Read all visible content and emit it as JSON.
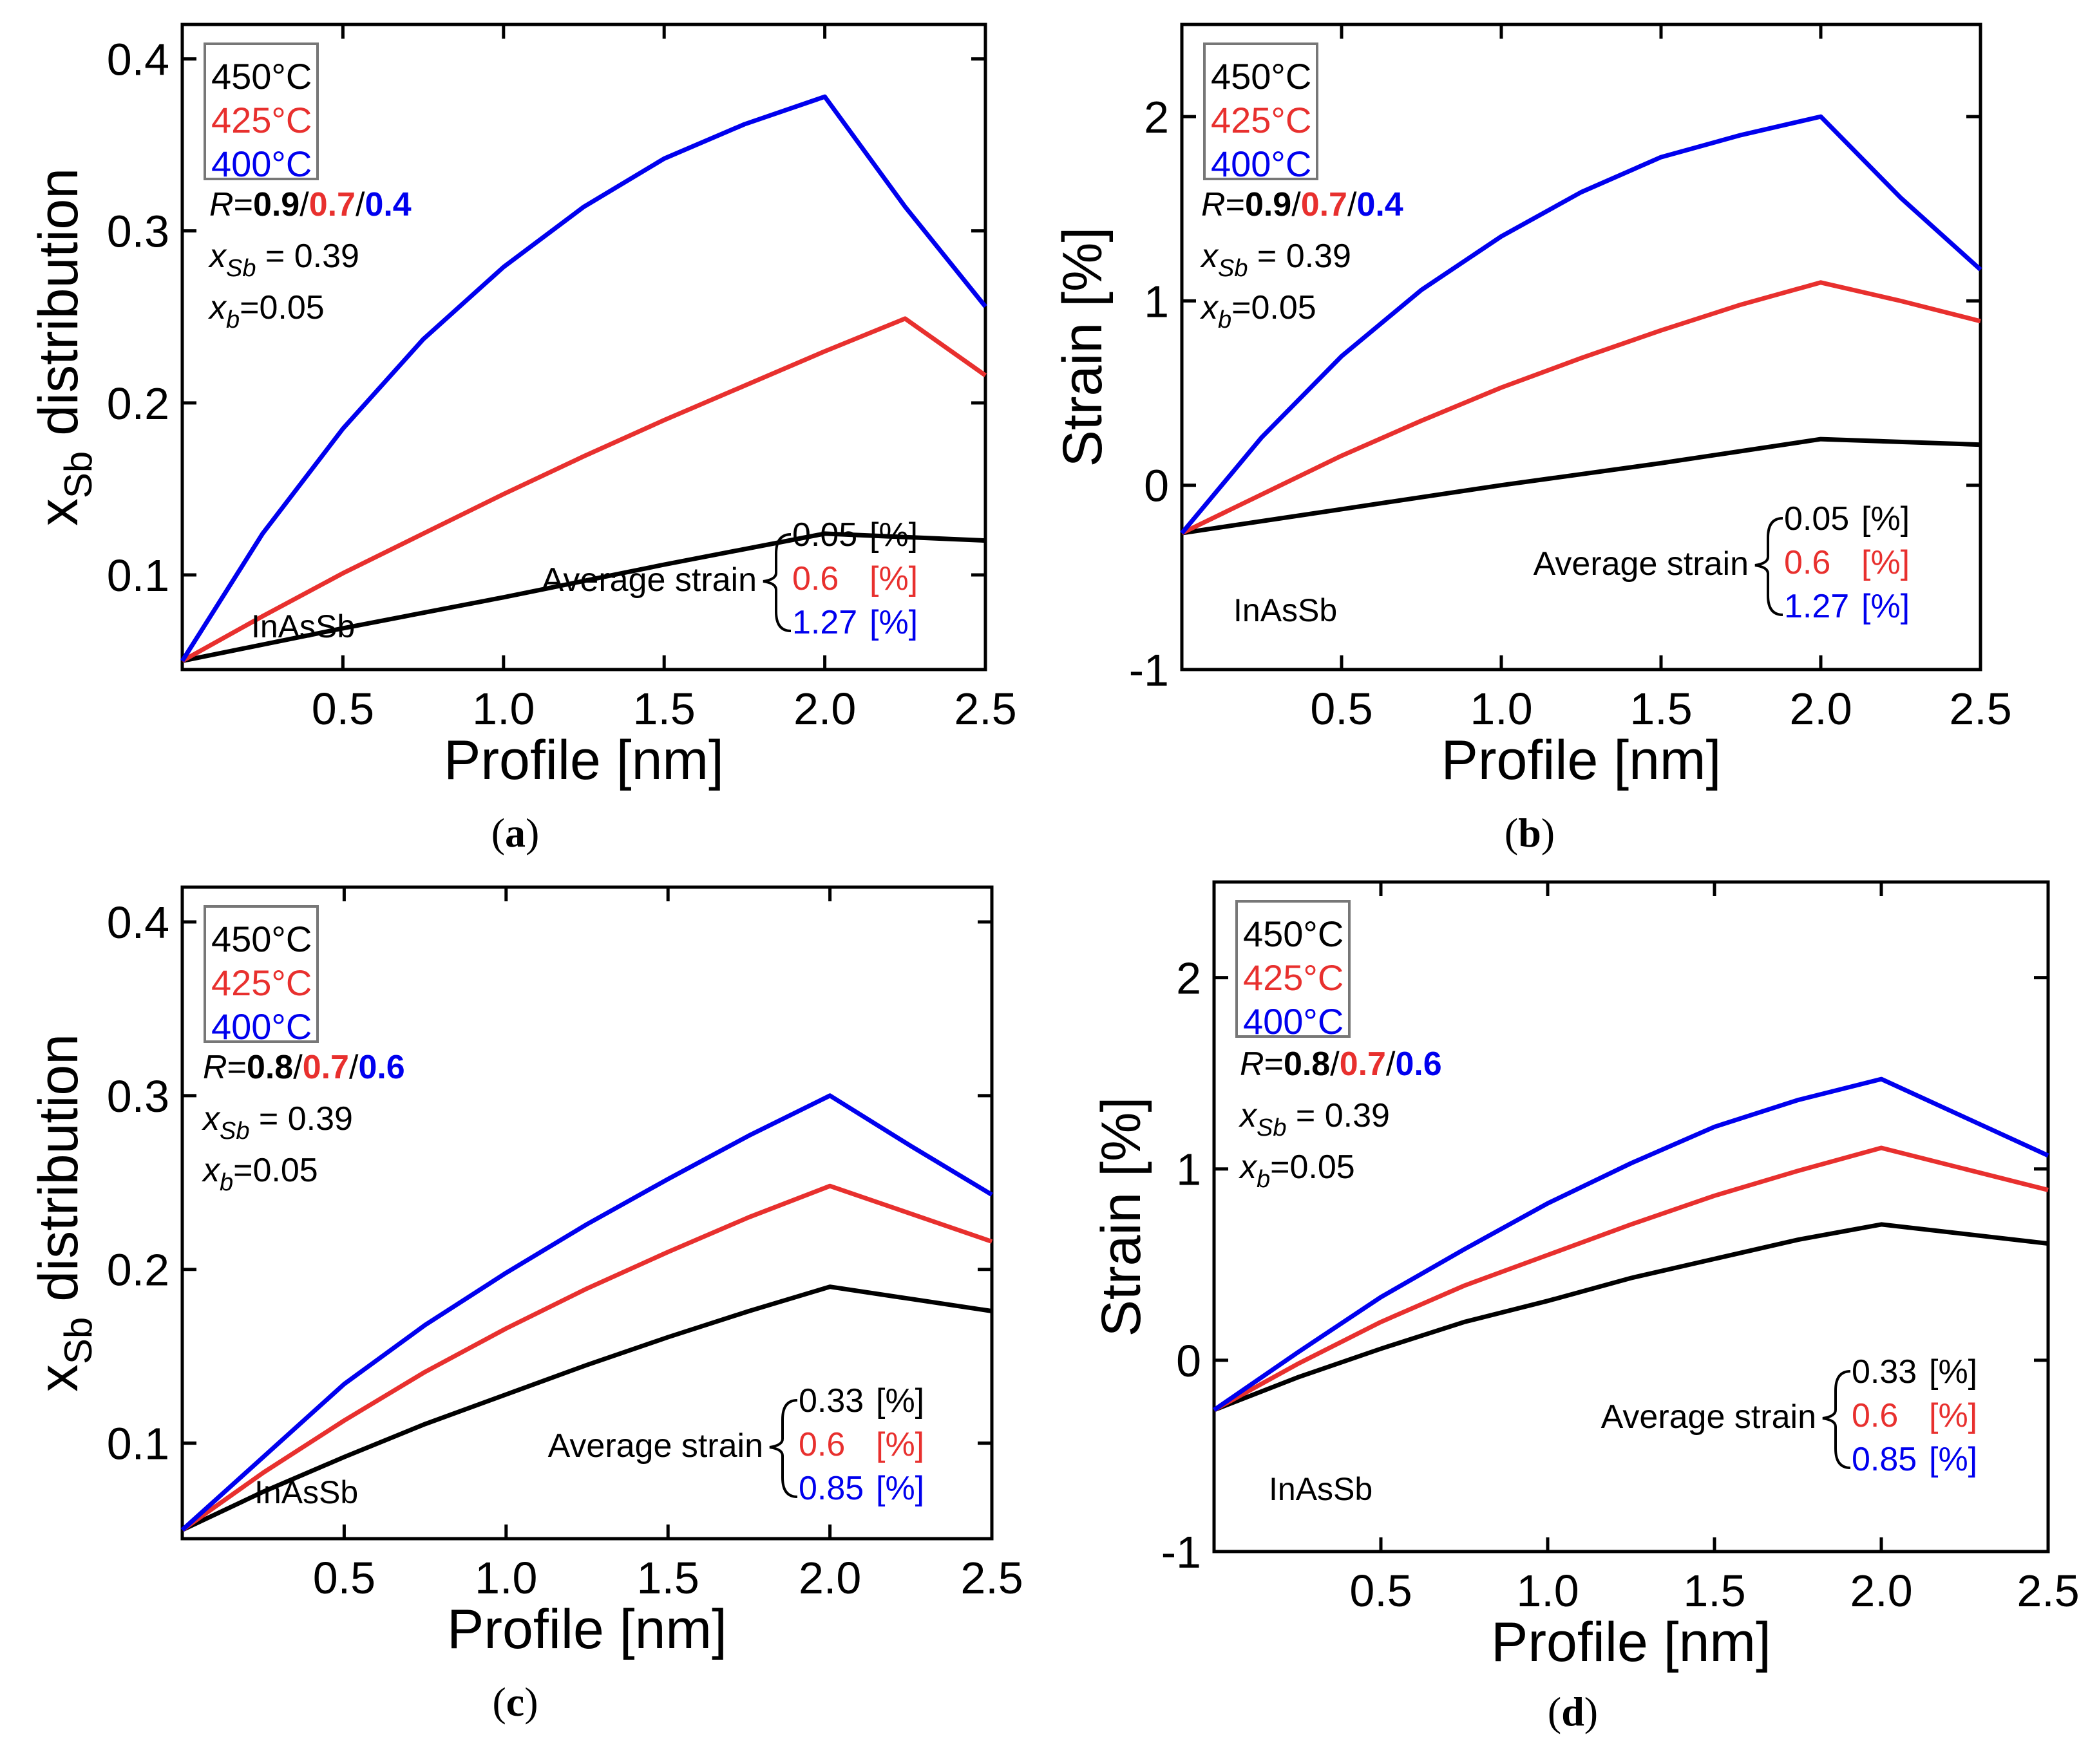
{
  "figure": {
    "colors": {
      "450": "#000000",
      "425": "#e8302e",
      "400": "#0000ee",
      "axis": "#000000"
    },
    "panels": [
      {
        "id": "a",
        "caption_letter": "a",
        "legend": [
          "450°C",
          "425°C",
          "400°C"
        ],
        "r_prefix": "R",
        "r_values": [
          "0.9",
          "0.7",
          "0.4"
        ],
        "xsb_label": "x",
        "xsb_sub": "Sb",
        "xsb_value": " = 0.39",
        "xb_label": "x",
        "xb_sub": "b",
        "xb_value": "=0.05",
        "material": "InAsSb",
        "avg_label": "Average strain",
        "avg_values": [
          "0.05",
          "0.6",
          "1.27"
        ],
        "avg_unit": "[%]"
      },
      {
        "id": "b",
        "caption_letter": "b",
        "legend": [
          "450°C",
          "425°C",
          "400°C"
        ],
        "r_prefix": "R",
        "r_values": [
          "0.9",
          "0.7",
          "0.4"
        ],
        "xsb_label": "x",
        "xsb_sub": "Sb",
        "xsb_value": " = 0.39",
        "xb_label": "x",
        "xb_sub": "b",
        "xb_value": "=0.05",
        "material": "InAsSb",
        "avg_label": "Average strain",
        "avg_values": [
          "0.05",
          "0.6",
          "1.27"
        ],
        "avg_unit": "[%]"
      },
      {
        "id": "c",
        "caption_letter": "c",
        "legend": [
          "450°C",
          "425°C",
          "400°C"
        ],
        "r_prefix": "R",
        "r_values": [
          "0.8",
          "0.7",
          "0.6"
        ],
        "xsb_label": "x",
        "xsb_sub": "Sb",
        "xsb_value": " = 0.39",
        "xb_label": "x",
        "xb_sub": "b",
        "xb_value": "=0.05",
        "material": "InAsSb",
        "avg_label": "Average strain",
        "avg_values": [
          "0.33",
          "0.6",
          "0.85"
        ],
        "avg_unit": "[%]"
      },
      {
        "id": "d",
        "caption_letter": "d",
        "legend": [
          "450°C",
          "425°C",
          "400°C"
        ],
        "r_prefix": "R",
        "r_values": [
          "0.8",
          "0.7",
          "0.6"
        ],
        "xsb_label": "x",
        "xsb_sub": "Sb",
        "xsb_value": " = 0.39",
        "xb_label": "x",
        "xb_sub": "b",
        "xb_value": "=0.05",
        "material": "InAsSb",
        "avg_label": "Average strain",
        "avg_values": [
          "0.33",
          "0.6",
          "0.85"
        ],
        "avg_unit": "[%]"
      }
    ]
  },
  "chart_data": [
    {
      "panel": "a",
      "type": "line",
      "title": "",
      "xlabel": "Profile [nm]",
      "ylabel_main": "x",
      "ylabel_sub": "Sb",
      "ylabel_rest": " distribution",
      "xlim": [
        0,
        2.5
      ],
      "ylim": [
        0.045,
        0.42
      ],
      "xticks": [
        0.5,
        1.0,
        1.5,
        2.0,
        2.5
      ],
      "xtick_labels": [
        "0.5",
        "1.0",
        "1.5",
        "2.0",
        "2.5"
      ],
      "yticks": [
        0.1,
        0.2,
        0.3,
        0.4
      ],
      "ytick_labels": [
        "0.1",
        "0.2",
        "0.3",
        "0.4"
      ],
      "series": [
        {
          "name": "450°C",
          "color": "#000000",
          "x": [
            0,
            0.5,
            1.0,
            1.5,
            2.0,
            2.5
          ],
          "y": [
            0.05,
            0.069,
            0.087,
            0.106,
            0.124,
            0.12
          ]
        },
        {
          "name": "425°C",
          "color": "#e8302e",
          "x": [
            0,
            0.25,
            0.5,
            0.75,
            1.0,
            1.25,
            1.5,
            1.75,
            2.0,
            2.25,
            2.5
          ],
          "y": [
            0.05,
            0.076,
            0.101,
            0.124,
            0.147,
            0.169,
            0.19,
            0.21,
            0.23,
            0.249,
            0.216
          ]
        },
        {
          "name": "400°C",
          "color": "#0000ee",
          "x": [
            0,
            0.25,
            0.5,
            0.75,
            1.0,
            1.25,
            1.5,
            1.75,
            2.0,
            2.25,
            2.5
          ],
          "y": [
            0.05,
            0.124,
            0.185,
            0.237,
            0.279,
            0.314,
            0.342,
            0.362,
            0.378,
            0.314,
            0.256
          ]
        }
      ]
    },
    {
      "panel": "b",
      "type": "line",
      "title": "",
      "xlabel": "Profile [nm]",
      "ylabel": "Strain [%]",
      "xlim": [
        0,
        2.5
      ],
      "ylim": [
        -1,
        2.5
      ],
      "xticks": [
        0.5,
        1.0,
        1.5,
        2.0,
        2.5
      ],
      "xtick_labels": [
        "0.5",
        "1.0",
        "1.5",
        "2.0",
        "2.5"
      ],
      "yticks": [
        -1,
        0,
        1,
        2
      ],
      "ytick_labels": [
        "-1",
        "0",
        "1",
        "2"
      ],
      "series": [
        {
          "name": "450°C",
          "color": "#000000",
          "x": [
            0,
            0.5,
            1.0,
            1.5,
            2.0,
            2.5
          ],
          "y": [
            -0.26,
            -0.13,
            0.0,
            0.12,
            0.25,
            0.22
          ]
        },
        {
          "name": "425°C",
          "color": "#e8302e",
          "x": [
            0,
            0.25,
            0.5,
            0.75,
            1.0,
            1.25,
            1.5,
            1.75,
            2.0,
            2.25,
            2.5
          ],
          "y": [
            -0.26,
            -0.05,
            0.16,
            0.35,
            0.53,
            0.69,
            0.84,
            0.98,
            1.1,
            1.0,
            0.89
          ]
        },
        {
          "name": "400°C",
          "color": "#0000ee",
          "x": [
            0,
            0.25,
            0.5,
            0.75,
            1.0,
            1.25,
            1.5,
            1.75,
            2.0,
            2.25,
            2.5
          ],
          "y": [
            -0.26,
            0.26,
            0.7,
            1.06,
            1.35,
            1.59,
            1.78,
            1.9,
            2.0,
            1.56,
            1.17
          ]
        }
      ]
    },
    {
      "panel": "c",
      "type": "line",
      "title": "",
      "xlabel": "Profile [nm]",
      "ylabel_main": "x",
      "ylabel_sub": "Sb",
      "ylabel_rest": " distribution",
      "xlim": [
        0,
        2.5
      ],
      "ylim": [
        0.045,
        0.42
      ],
      "xticks": [
        0.5,
        1.0,
        1.5,
        2.0,
        2.5
      ],
      "xtick_labels": [
        "0.5",
        "1.0",
        "1.5",
        "2.0",
        "2.5"
      ],
      "yticks": [
        0.1,
        0.2,
        0.3,
        0.4
      ],
      "ytick_labels": [
        "0.1",
        "0.2",
        "0.3",
        "0.4"
      ],
      "series": [
        {
          "name": "450°C",
          "color": "#000000",
          "x": [
            0,
            0.25,
            0.5,
            0.75,
            1.0,
            1.25,
            1.5,
            1.75,
            2.0,
            2.25,
            2.5
          ],
          "y": [
            0.05,
            0.072,
            0.092,
            0.111,
            0.128,
            0.145,
            0.161,
            0.176,
            0.19,
            0.183,
            0.176
          ]
        },
        {
          "name": "425°C",
          "color": "#e8302e",
          "x": [
            0,
            0.25,
            0.5,
            0.75,
            1.0,
            1.25,
            1.5,
            1.75,
            2.0,
            2.25,
            2.5
          ],
          "y": [
            0.05,
            0.083,
            0.113,
            0.141,
            0.166,
            0.189,
            0.21,
            0.23,
            0.248,
            0.232,
            0.216
          ]
        },
        {
          "name": "400°C",
          "color": "#0000ee",
          "x": [
            0,
            0.25,
            0.5,
            0.75,
            1.0,
            1.25,
            1.5,
            1.75,
            2.0,
            2.25,
            2.5
          ],
          "y": [
            0.05,
            0.092,
            0.134,
            0.168,
            0.198,
            0.226,
            0.252,
            0.277,
            0.3,
            0.271,
            0.243
          ]
        }
      ]
    },
    {
      "panel": "d",
      "type": "line",
      "title": "",
      "xlabel": "Profile [nm]",
      "ylabel": "Strain [%]",
      "xlim": [
        0,
        2.5
      ],
      "ylim": [
        -1,
        2.5
      ],
      "xticks": [
        0.5,
        1.0,
        1.5,
        2.0,
        2.5
      ],
      "xtick_labels": [
        "0.5",
        "1.0",
        "1.5",
        "2.0",
        "2.5"
      ],
      "yticks": [
        -1,
        0,
        1,
        2
      ],
      "ytick_labels": [
        "-1",
        "0",
        "1",
        "2"
      ],
      "series": [
        {
          "name": "450°C",
          "color": "#000000",
          "x": [
            0,
            0.25,
            0.5,
            0.75,
            1.0,
            1.25,
            1.5,
            1.75,
            2.0,
            2.25,
            2.5
          ],
          "y": [
            -0.26,
            -0.09,
            0.06,
            0.2,
            0.31,
            0.43,
            0.53,
            0.63,
            0.71,
            0.66,
            0.61
          ]
        },
        {
          "name": "425°C",
          "color": "#e8302e",
          "x": [
            0,
            0.25,
            0.5,
            0.75,
            1.0,
            1.25,
            1.5,
            1.75,
            2.0,
            2.25,
            2.5
          ],
          "y": [
            -0.26,
            -0.02,
            0.2,
            0.39,
            0.55,
            0.71,
            0.86,
            0.99,
            1.11,
            1.0,
            0.89
          ]
        },
        {
          "name": "400°C",
          "color": "#0000ee",
          "x": [
            0,
            0.25,
            0.5,
            0.75,
            1.0,
            1.25,
            1.5,
            1.75,
            2.0,
            2.25,
            2.5
          ],
          "y": [
            -0.26,
            0.04,
            0.33,
            0.58,
            0.82,
            1.03,
            1.22,
            1.36,
            1.47,
            1.27,
            1.07
          ]
        }
      ]
    }
  ]
}
